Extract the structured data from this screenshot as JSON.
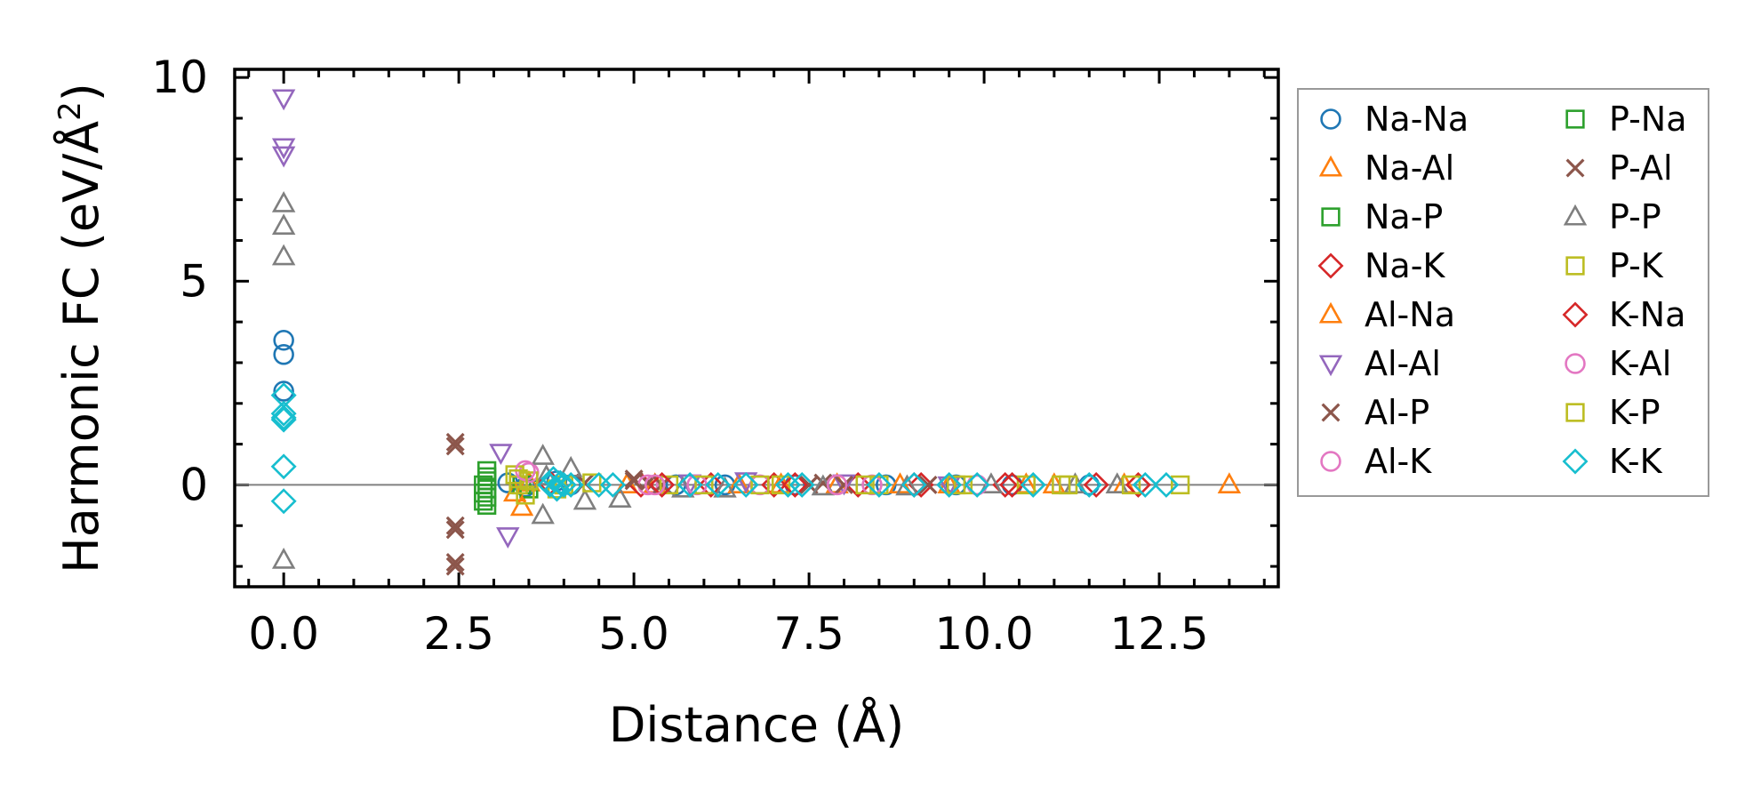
{
  "chart_data": {
    "type": "scatter",
    "title": "",
    "xlabel": "Distance (Å)",
    "ylabel": "Harmonic FC (eV/Å²)",
    "ylabel_base": "Harmonic FC (eV/Å",
    "ylabel_sup": "2",
    "ylabel_tail": ")",
    "xlim": [
      -0.7,
      14.2
    ],
    "ylim": [
      -2.5,
      10.2
    ],
    "xticks": [
      0.0,
      2.5,
      5.0,
      7.5,
      10.0,
      12.5
    ],
    "xtick_labels": [
      "0.0",
      "2.5",
      "5.0",
      "7.5",
      "10.0",
      "12.5"
    ],
    "yticks": [
      0,
      5,
      10
    ],
    "ytick_labels": [
      "0",
      "5",
      "10"
    ],
    "grid": false,
    "legend_position": "outside-right",
    "zero_line": true,
    "series": [
      {
        "name": "Na-Na",
        "marker": "circle",
        "color": "#1f77b4",
        "x": [
          0,
          0,
          0,
          3.2,
          3.45,
          3.9,
          4.1,
          5.6,
          6.3,
          7.3,
          8.6,
          9.6,
          10.4,
          11.5
        ],
        "y": [
          3.55,
          3.2,
          2.3,
          0.05,
          -0.05,
          0.1,
          0.0,
          0.0,
          0.0,
          0.0,
          0.0,
          0.0,
          0.0,
          0.0
        ]
      },
      {
        "name": "Na-Al",
        "marker": "triangle-up",
        "color": "#ff7f0e",
        "x": [
          3.3,
          3.5,
          4.9,
          6.5,
          7.9,
          9.5,
          11.0,
          12.0,
          13.5
        ],
        "y": [
          -0.2,
          0.05,
          0.0,
          0.0,
          0.0,
          0.0,
          0.0,
          0.0,
          0.0
        ]
      },
      {
        "name": "Na-P",
        "marker": "square",
        "color": "#2ca02c",
        "x": [
          2.9,
          2.9,
          2.9,
          2.9,
          2.9,
          2.9,
          3.4,
          3.5
        ],
        "y": [
          0.35,
          0.1,
          -0.1,
          -0.3,
          -0.5,
          0.2,
          0.0,
          -0.1
        ]
      },
      {
        "name": "Na-K",
        "marker": "diamond",
        "color": "#d62728",
        "x": [
          3.8,
          5.1,
          6.1,
          7.0,
          8.2,
          9.1,
          10.3,
          11.6,
          12.2
        ],
        "y": [
          0.05,
          0.0,
          0.0,
          0.0,
          0.0,
          0.0,
          0.0,
          0.0,
          0.0
        ]
      },
      {
        "name": "Al-Na",
        "marker": "triangle-up",
        "color": "#ff7f0e",
        "x": [
          3.4,
          5.3,
          7.1,
          8.8,
          10.6
        ],
        "y": [
          -0.55,
          0.0,
          0.0,
          0.0,
          0.0
        ]
      },
      {
        "name": "Al-Al",
        "marker": "triangle-down",
        "color": "#9467bd",
        "x": [
          0,
          0,
          0,
          3.1,
          3.2,
          5.8,
          6.6,
          8.0,
          9.5
        ],
        "y": [
          9.5,
          8.3,
          8.1,
          0.8,
          -1.25,
          0.05,
          0.1,
          0.05,
          0.0
        ]
      },
      {
        "name": "Al-P",
        "marker": "x",
        "color": "#8c564b",
        "x": [
          2.45,
          2.45,
          2.45,
          2.45,
          2.45,
          2.45,
          5.0,
          5.2,
          8.0
        ],
        "y": [
          1.05,
          0.95,
          -1.0,
          -1.1,
          -1.9,
          -2.0,
          0.15,
          0.05,
          0.0
        ]
      },
      {
        "name": "Al-K",
        "marker": "circle",
        "color": "#e377c2",
        "x": [
          3.5,
          5.2,
          6.8,
          8.4
        ],
        "y": [
          0.3,
          0.0,
          0.0,
          0.0
        ]
      },
      {
        "name": "P-Na",
        "marker": "square",
        "color": "#2ca02c",
        "x": [
          2.85,
          2.85,
          2.85,
          4.0
        ],
        "y": [
          0.0,
          -0.2,
          -0.4,
          0.0
        ]
      },
      {
        "name": "P-Al",
        "marker": "x",
        "color": "#8c564b",
        "x": [
          4.3,
          5.0,
          5.4,
          7.5,
          7.7,
          9.2
        ],
        "y": [
          0.05,
          0.1,
          0.0,
          0.0,
          0.05,
          0.0
        ]
      },
      {
        "name": "P-P",
        "marker": "triangle-up",
        "color": "#7f7f7f",
        "x": [
          0,
          0,
          0,
          0,
          3.7,
          3.7,
          3.75,
          4.1,
          4.3,
          4.8,
          5.7,
          6.3,
          7.7,
          8.9,
          10.1,
          11.3,
          11.9
        ],
        "y": [
          6.9,
          6.35,
          5.6,
          -1.85,
          0.7,
          -0.75,
          0.2,
          0.4,
          -0.4,
          -0.35,
          -0.1,
          -0.1,
          -0.05,
          -0.05,
          0.0,
          0.0,
          0.0
        ]
      },
      {
        "name": "P-K",
        "marker": "square",
        "color": "#bcbd22",
        "x": [
          3.3,
          3.35,
          3.45,
          3.5,
          4.0,
          5.5,
          7.1,
          8.5,
          9.6,
          10.6,
          11.1,
          12.8
        ],
        "y": [
          0.25,
          0.0,
          -0.25,
          0.1,
          0.0,
          0.0,
          0.0,
          0.0,
          0.0,
          0.0,
          0.0,
          0.0
        ]
      },
      {
        "name": "K-Na",
        "marker": "diamond",
        "color": "#d62728",
        "x": [
          5.4,
          7.3,
          9.0,
          10.4
        ],
        "y": [
          0.0,
          0.0,
          0.0,
          0.0
        ]
      },
      {
        "name": "K-Al",
        "marker": "circle",
        "color": "#e377c2",
        "x": [
          3.45,
          5.3,
          5.9,
          7.9,
          9.9
        ],
        "y": [
          0.35,
          0.0,
          0.0,
          0.0,
          0.0
        ]
      },
      {
        "name": "K-P",
        "marker": "square",
        "color": "#bcbd22",
        "x": [
          3.35,
          3.9,
          4.4,
          6.0,
          6.8,
          8.3,
          9.7,
          11.2,
          12.1
        ],
        "y": [
          0.15,
          -0.1,
          0.05,
          0.0,
          0.0,
          0.0,
          0.0,
          0.0,
          0.0
        ]
      },
      {
        "name": "K-K",
        "marker": "diamond",
        "color": "#17becf",
        "x": [
          0,
          0,
          0,
          0,
          0,
          0,
          3.8,
          3.85,
          3.9,
          3.95,
          4.0,
          4.1,
          4.5,
          4.7,
          5.8,
          6.2,
          6.6,
          7.2,
          7.4,
          8.5,
          9.0,
          9.5,
          9.9,
          10.7,
          11.5,
          12.3,
          12.6
        ],
        "y": [
          2.2,
          1.75,
          1.65,
          1.6,
          0.45,
          -0.4,
          0.0,
          0.15,
          -0.1,
          0.05,
          0.0,
          0.0,
          0.0,
          0.0,
          0.0,
          0.0,
          0.0,
          0.0,
          0.0,
          0.0,
          0.0,
          0.0,
          0.0,
          0.0,
          0.0,
          0.0,
          0.0
        ]
      }
    ]
  }
}
